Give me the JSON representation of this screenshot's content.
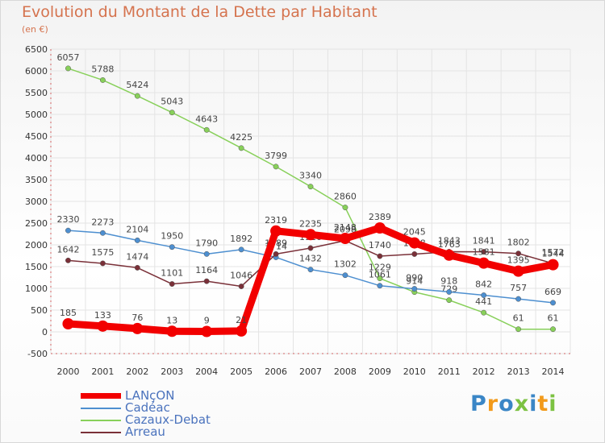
{
  "title": "Evolution du Montant de la Dette par Habitant",
  "unit_label": "(en €)",
  "logo_text": "Proxiti",
  "chart_data": {
    "type": "line",
    "title": "Evolution du Montant de la Dette par Habitant",
    "ylabel": "(en €)",
    "xlabel": "",
    "x": [
      2000,
      2001,
      2002,
      2003,
      2004,
      2005,
      2006,
      2007,
      2008,
      2009,
      2010,
      2011,
      2012,
      2013,
      2014
    ],
    "x_tick_labels": [
      "2000",
      "2001",
      "2002",
      "2003",
      "2004",
      "2005",
      "2006",
      "2007",
      "2008",
      "2009",
      "2010",
      "2011",
      "2012",
      "2013",
      "2014"
    ],
    "ylim": [
      -500,
      6500
    ],
    "y_ticks": [
      -500,
      0,
      500,
      1000,
      1500,
      2000,
      2500,
      3000,
      3500,
      4000,
      4500,
      5000,
      5500,
      6000,
      6500
    ],
    "y_tick_labels": [
      "-500",
      "0",
      "500",
      "1000",
      "1500",
      "2000",
      "2500",
      "3000",
      "3500",
      "4000",
      "4500",
      "5000",
      "5500",
      "6000",
      "6500"
    ],
    "grid": true,
    "legend_position": "bottom-left",
    "series": [
      {
        "name": "Cazaux-Debat",
        "color": "#88d05a",
        "values": [
          6057,
          5788,
          5424,
          5043,
          4643,
          4225,
          3799,
          3340,
          2860,
          1229,
          914,
          729,
          441,
          61,
          61
        ],
        "labels": [
          "6057",
          "5788",
          "5424",
          "5043",
          "4643",
          "4225",
          "3799",
          "3340",
          "2860",
          "1229",
          "914",
          "729",
          "441",
          "61",
          "61"
        ]
      },
      {
        "name": "Cadéac",
        "color": "#4d8fd0",
        "values": [
          2330,
          2273,
          2104,
          1950,
          1790,
          1892,
          1714,
          1432,
          1302,
          1061,
          990,
          918,
          842,
          757,
          669
        ],
        "labels": [
          "2330",
          "2273",
          "2104",
          "1950",
          "1790",
          "1892",
          "1714",
          "1432",
          "1302",
          "1061",
          "990",
          "918",
          "842",
          "757",
          "669"
        ]
      },
      {
        "name": "Arreau",
        "color": "#7a3038",
        "values": [
          1642,
          1575,
          1474,
          1101,
          1164,
          1046,
          1789,
          1926,
          2098,
          1740,
          1788,
          1843,
          1841,
          1802,
          1572
        ],
        "labels": [
          "1642",
          "1575",
          "1474",
          "1101",
          "1164",
          "1046",
          "1789",
          "1926",
          "2098",
          "1740",
          "1788",
          "1843",
          "1841",
          "1802",
          "1572"
        ]
      },
      {
        "name": "LANçON",
        "color": "#f20000",
        "values": [
          185,
          133,
          76,
          13,
          9,
          21,
          2319,
          2235,
          2148,
          2389,
          2045,
          1763,
          1581,
          1395,
          1544
        ],
        "labels": [
          "185",
          "133",
          "76",
          "13",
          "9",
          "21",
          "2319",
          "2235",
          "2148",
          "2389",
          "2045",
          "1763",
          "1581",
          "1395",
          "1544"
        ]
      }
    ]
  },
  "legend": [
    {
      "label": "LANçON",
      "color": "#f20000",
      "thick": true
    },
    {
      "label": "Cadéac",
      "color": "#4d8fd0",
      "thick": false
    },
    {
      "label": "Cazaux-Debat",
      "color": "#88d05a",
      "thick": false
    },
    {
      "label": "Arreau",
      "color": "#7a3038",
      "thick": false
    }
  ]
}
